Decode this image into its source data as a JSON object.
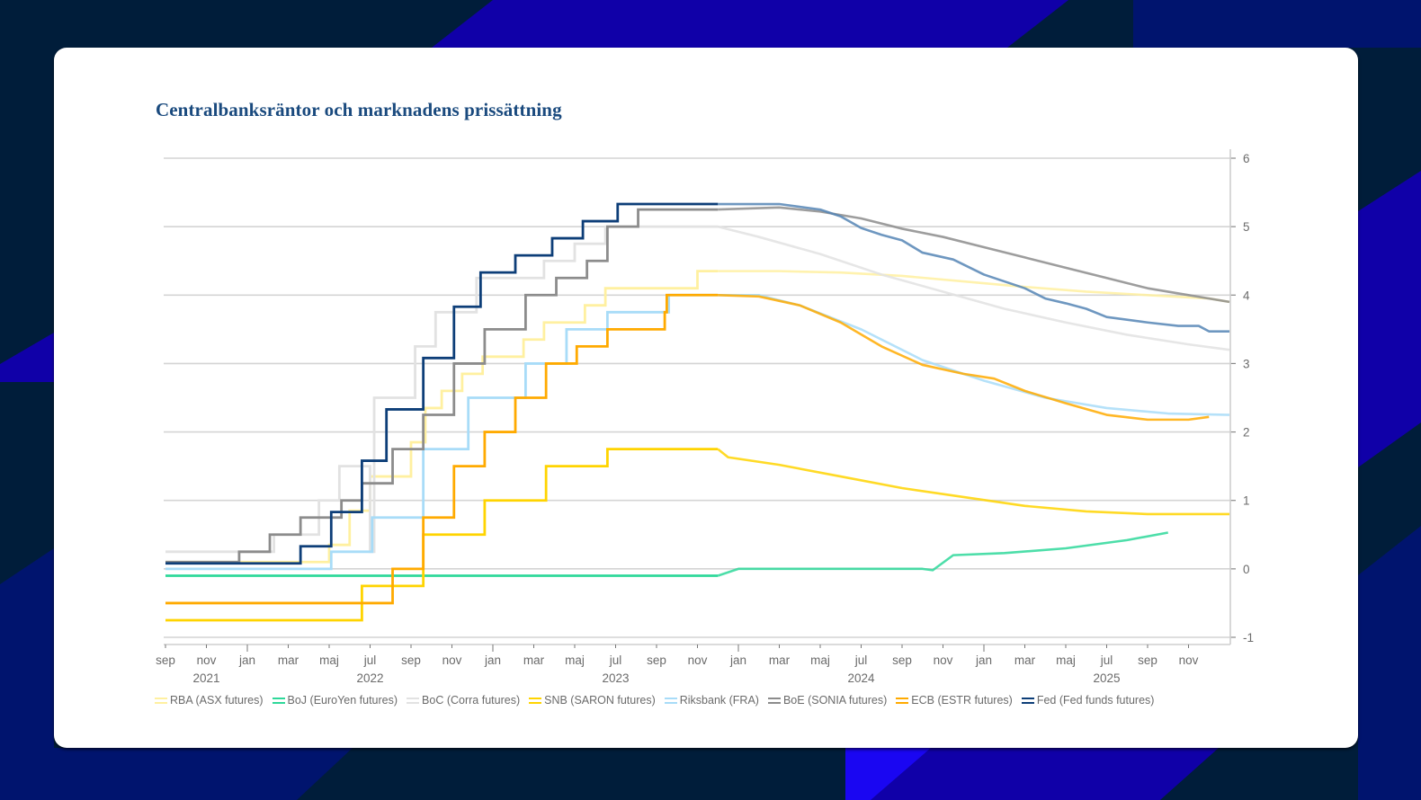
{
  "page": {
    "title": "Centralbanksräntor och marknadens prissättning"
  },
  "colors": {
    "background": "#001d3a",
    "accent_blue": "#1000a8",
    "accent_bright_blue": "#1a06f2",
    "accent_navy": "#00146e",
    "card": "#ffffff",
    "title": "#1a4a7e"
  },
  "chart_data": {
    "type": "line",
    "title": "Centralbanksräntor och marknadens prissättning",
    "xlabel": "",
    "ylabel": "",
    "x_unit": "months since sep 2021",
    "xlim": [
      0,
      52
    ],
    "ylim": [
      -1,
      6
    ],
    "y_ticks": [
      6,
      5,
      4,
      3,
      2,
      1,
      0,
      -1
    ],
    "y_axis_side": "right",
    "grid": true,
    "x_month_ticks": [
      "sep",
      "nov",
      "jan",
      "mar",
      "maj",
      "jul",
      "sep",
      "nov",
      "jan",
      "mar",
      "maj",
      "jul",
      "sep",
      "nov",
      "jan",
      "mar",
      "maj",
      "jul",
      "sep",
      "nov",
      "jan",
      "mar",
      "maj",
      "jul",
      "sep",
      "nov"
    ],
    "x_year_labels": [
      {
        "label": "2021",
        "month": 2
      },
      {
        "label": "2022",
        "month": 10
      },
      {
        "label": "2023",
        "month": 22
      },
      {
        "label": "2024",
        "month": 34
      },
      {
        "label": "2025",
        "month": 46
      }
    ],
    "legend_position": "bottom",
    "forecast_start_month": 27,
    "series": [
      {
        "name": "RBA (ASX futures)",
        "color": "#fff0a0",
        "step": [
          [
            0,
            0.1
          ],
          [
            8,
            0.35
          ],
          [
            9,
            0.85
          ],
          [
            10,
            1.35
          ],
          [
            12,
            1.85
          ],
          [
            12.7,
            2.35
          ],
          [
            13.5,
            2.6
          ],
          [
            14.5,
            2.85
          ],
          [
            15.5,
            3.1
          ],
          [
            17.5,
            3.35
          ],
          [
            18.5,
            3.6
          ],
          [
            20.5,
            3.85
          ],
          [
            21.5,
            4.1
          ],
          [
            26,
            4.35
          ],
          [
            27,
            4.35
          ]
        ],
        "forecast": [
          [
            27,
            4.35
          ],
          [
            30,
            4.35
          ],
          [
            33,
            4.33
          ],
          [
            36,
            4.28
          ],
          [
            39,
            4.2
          ],
          [
            42,
            4.12
          ],
          [
            45,
            4.05
          ],
          [
            48,
            4.0
          ],
          [
            51,
            3.95
          ],
          [
            52,
            3.9
          ]
        ]
      },
      {
        "name": "BoJ (EuroYen futures)",
        "color": "#2ed89a",
        "step": [
          [
            0,
            -0.1
          ],
          [
            27,
            -0.1
          ]
        ],
        "forecast": [
          [
            27,
            -0.1
          ],
          [
            28,
            0
          ],
          [
            31,
            0
          ],
          [
            34,
            0
          ],
          [
            37,
            0
          ],
          [
            37.5,
            -0.02
          ],
          [
            38.5,
            0.2
          ],
          [
            41,
            0.23
          ],
          [
            44,
            0.3
          ],
          [
            47,
            0.42
          ],
          [
            49,
            0.53
          ]
        ]
      },
      {
        "name": "BoC (Corra futures)",
        "color": "#e2e2e2",
        "step": [
          [
            0,
            0.25
          ],
          [
            10,
            0.25
          ],
          [
            5.3,
            0.5
          ],
          [
            7,
            0.5
          ],
          [
            7.5,
            1.0
          ],
          [
            8.5,
            1.5
          ],
          [
            10.2,
            2.5
          ],
          [
            12.2,
            3.25
          ],
          [
            13.2,
            3.75
          ],
          [
            14.5,
            3.75
          ],
          [
            15.2,
            4.25
          ],
          [
            18.5,
            4.5
          ],
          [
            20,
            4.75
          ],
          [
            21.5,
            5.0
          ],
          [
            27,
            5.0
          ]
        ],
        "forecast": [
          [
            27,
            5.0
          ],
          [
            29,
            4.85
          ],
          [
            32,
            4.6
          ],
          [
            35,
            4.3
          ],
          [
            38,
            4.05
          ],
          [
            41,
            3.8
          ],
          [
            44,
            3.6
          ],
          [
            47,
            3.42
          ],
          [
            50,
            3.28
          ],
          [
            52,
            3.2
          ]
        ]
      },
      {
        "name": "SNB (SARON futures)",
        "color": "#ffd400",
        "step": [
          [
            0,
            -0.75
          ],
          [
            9.5,
            -0.75
          ],
          [
            9.6,
            -0.25
          ],
          [
            12.5,
            -0.25
          ],
          [
            12.6,
            0.5
          ],
          [
            15.5,
            0.5
          ],
          [
            15.6,
            1.0
          ],
          [
            18.5,
            1.0
          ],
          [
            18.6,
            1.5
          ],
          [
            21.5,
            1.5
          ],
          [
            21.6,
            1.75
          ],
          [
            27,
            1.75
          ]
        ],
        "forecast": [
          [
            27,
            1.75
          ],
          [
            27.5,
            1.63
          ],
          [
            30,
            1.52
          ],
          [
            33,
            1.35
          ],
          [
            36,
            1.18
          ],
          [
            39,
            1.05
          ],
          [
            42,
            0.92
          ],
          [
            45,
            0.84
          ],
          [
            48,
            0.8
          ],
          [
            52,
            0.8
          ]
        ]
      },
      {
        "name": "Riksbank (FRA)",
        "color": "#a8dcf8",
        "step": [
          [
            0,
            0
          ],
          [
            8,
            0
          ],
          [
            8.1,
            0.25
          ],
          [
            10,
            0.25
          ],
          [
            10.1,
            0.75
          ],
          [
            12.5,
            0.75
          ],
          [
            12.6,
            1.75
          ],
          [
            14.7,
            1.75
          ],
          [
            14.8,
            2.5
          ],
          [
            17.5,
            2.5
          ],
          [
            17.6,
            3.0
          ],
          [
            19.5,
            3.0
          ],
          [
            19.6,
            3.5
          ],
          [
            21.5,
            3.5
          ],
          [
            21.6,
            3.75
          ],
          [
            24.5,
            3.75
          ],
          [
            24.6,
            4.0
          ],
          [
            27,
            4.0
          ]
        ],
        "forecast": [
          [
            27,
            4.0
          ],
          [
            29,
            4.0
          ],
          [
            31,
            3.85
          ],
          [
            34,
            3.5
          ],
          [
            37,
            3.05
          ],
          [
            40,
            2.75
          ],
          [
            43,
            2.5
          ],
          [
            46,
            2.35
          ],
          [
            49,
            2.27
          ],
          [
            52,
            2.25
          ]
        ]
      },
      {
        "name": "BoE (SONIA futures)",
        "color": "#8c8c8c",
        "step": [
          [
            0,
            0.1
          ],
          [
            3.5,
            0.1
          ],
          [
            3.6,
            0.25
          ],
          [
            5,
            0.25
          ],
          [
            5.1,
            0.5
          ],
          [
            6.5,
            0.5
          ],
          [
            6.6,
            0.75
          ],
          [
            8.5,
            0.75
          ],
          [
            8.6,
            1.0
          ],
          [
            9.6,
            1.25
          ],
          [
            11,
            1.25
          ],
          [
            11.1,
            1.75
          ],
          [
            12.5,
            1.75
          ],
          [
            12.6,
            2.25
          ],
          [
            14,
            2.25
          ],
          [
            14.1,
            3.0
          ],
          [
            15.5,
            3.0
          ],
          [
            15.6,
            3.5
          ],
          [
            17.5,
            3.5
          ],
          [
            17.6,
            4.0
          ],
          [
            19,
            4.0
          ],
          [
            19.1,
            4.25
          ],
          [
            20.5,
            4.25
          ],
          [
            20.6,
            4.5
          ],
          [
            21.5,
            4.5
          ],
          [
            21.6,
            5.0
          ],
          [
            23,
            5.0
          ],
          [
            23.1,
            5.25
          ],
          [
            27,
            5.25
          ]
        ],
        "forecast": [
          [
            27,
            5.25
          ],
          [
            30,
            5.28
          ],
          [
            32,
            5.22
          ],
          [
            34,
            5.12
          ],
          [
            36,
            4.97
          ],
          [
            38,
            4.85
          ],
          [
            40,
            4.7
          ],
          [
            42,
            4.55
          ],
          [
            44,
            4.4
          ],
          [
            46,
            4.25
          ],
          [
            48,
            4.1
          ],
          [
            50,
            4.0
          ],
          [
            52,
            3.9
          ]
        ]
      },
      {
        "name": "ECB (ESTR futures)",
        "color": "#ffaa00",
        "step": [
          [
            0,
            -0.5
          ],
          [
            11,
            -0.5
          ],
          [
            11.1,
            0
          ],
          [
            12.5,
            0
          ],
          [
            12.6,
            0.75
          ],
          [
            14,
            0.75
          ],
          [
            14.1,
            1.5
          ],
          [
            15.5,
            1.5
          ],
          [
            15.6,
            2.0
          ],
          [
            17,
            2.0
          ],
          [
            17.1,
            2.5
          ],
          [
            18.5,
            2.5
          ],
          [
            18.6,
            3.0
          ],
          [
            20,
            3.0
          ],
          [
            20.1,
            3.25
          ],
          [
            21.5,
            3.25
          ],
          [
            21.6,
            3.5
          ],
          [
            24.3,
            3.5
          ],
          [
            24.4,
            3.75
          ],
          [
            24.5,
            4.0
          ],
          [
            27,
            4.0
          ]
        ],
        "forecast": [
          [
            27,
            4.0
          ],
          [
            29,
            3.98
          ],
          [
            31,
            3.85
          ],
          [
            33,
            3.6
          ],
          [
            35,
            3.25
          ],
          [
            37,
            2.98
          ],
          [
            39,
            2.85
          ],
          [
            40.5,
            2.78
          ],
          [
            42,
            2.6
          ],
          [
            44,
            2.42
          ],
          [
            46,
            2.25
          ],
          [
            48,
            2.18
          ],
          [
            50,
            2.18
          ],
          [
            51,
            2.22
          ]
        ]
      },
      {
        "name": "Fed (Fed funds futures)",
        "color": "#0d3e78",
        "forecast_color": "#5585b5",
        "step": [
          [
            0,
            0.08
          ],
          [
            6.5,
            0.08
          ],
          [
            6.6,
            0.33
          ],
          [
            8,
            0.33
          ],
          [
            8.1,
            0.83
          ],
          [
            9.5,
            0.83
          ],
          [
            9.6,
            1.58
          ],
          [
            10.7,
            1.58
          ],
          [
            10.8,
            2.33
          ],
          [
            12.5,
            2.33
          ],
          [
            12.6,
            3.08
          ],
          [
            14,
            3.08
          ],
          [
            14.1,
            3.83
          ],
          [
            15.3,
            3.83
          ],
          [
            15.4,
            4.33
          ],
          [
            17,
            4.33
          ],
          [
            17.1,
            4.58
          ],
          [
            18.8,
            4.58
          ],
          [
            18.9,
            4.83
          ],
          [
            20.3,
            4.83
          ],
          [
            20.4,
            5.08
          ],
          [
            22,
            5.08
          ],
          [
            22.1,
            5.33
          ],
          [
            27,
            5.33
          ]
        ],
        "forecast": [
          [
            27,
            5.33
          ],
          [
            30,
            5.33
          ],
          [
            32,
            5.25
          ],
          [
            33,
            5.15
          ],
          [
            34,
            4.98
          ],
          [
            35,
            4.88
          ],
          [
            36,
            4.8
          ],
          [
            37,
            4.62
          ],
          [
            38.5,
            4.52
          ],
          [
            40,
            4.3
          ],
          [
            42,
            4.1
          ],
          [
            43,
            3.95
          ],
          [
            44,
            3.88
          ],
          [
            45,
            3.8
          ],
          [
            46,
            3.68
          ],
          [
            48,
            3.6
          ],
          [
            49.5,
            3.55
          ],
          [
            50.5,
            3.55
          ],
          [
            51,
            3.47
          ],
          [
            52,
            3.47
          ]
        ]
      }
    ]
  }
}
